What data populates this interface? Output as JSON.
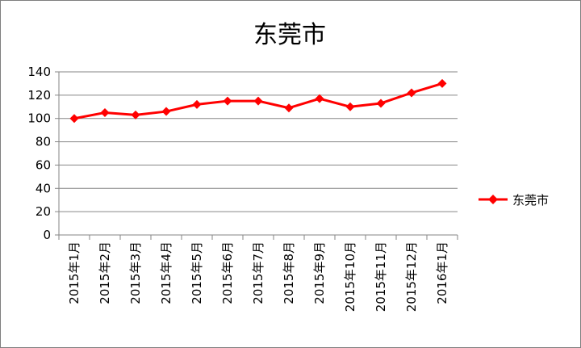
{
  "chart_data": {
    "type": "line",
    "title": "东莞市",
    "categories": [
      "2015年1月",
      "2015年2月",
      "2015年3月",
      "2015年4月",
      "2015年5月",
      "2015年6月",
      "2015年7月",
      "2015年8月",
      "2015年9月",
      "2015年10月",
      "2015年11月",
      "2015年12月",
      "2016年1月"
    ],
    "series": [
      {
        "name": "东莞市",
        "values": [
          100,
          105,
          103,
          106,
          112,
          115,
          115,
          109,
          117,
          110,
          113,
          122,
          130
        ],
        "color": "#ff0000",
        "marker": "diamond"
      }
    ],
    "ylim": [
      0,
      140
    ],
    "yticks": [
      "0",
      "20",
      "40",
      "60",
      "80",
      "100",
      "120",
      "140"
    ],
    "grid": true,
    "legend_position": "right"
  }
}
